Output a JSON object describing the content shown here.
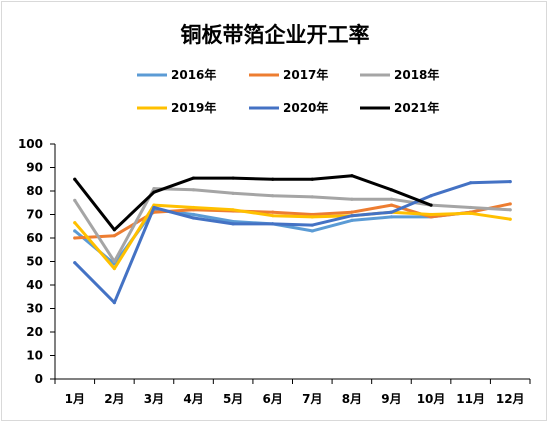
{
  "chart_data": {
    "type": "line",
    "title": "铜板带箔企业开工率",
    "xlabel": "",
    "ylabel": "",
    "categories": [
      "1月",
      "2月",
      "3月",
      "4月",
      "5月",
      "6月",
      "7月",
      "8月",
      "9月",
      "10月",
      "11月",
      "12月"
    ],
    "ylim": [
      0,
      100
    ],
    "yticks": [
      0,
      10,
      20,
      30,
      40,
      50,
      60,
      70,
      80,
      90,
      100
    ],
    "grid": false,
    "legend_position": "top",
    "series": [
      {
        "name": "2016年",
        "color": "#5b9bd5",
        "values": [
          63,
          49,
          72,
          70,
          67,
          66,
          63,
          67.5,
          69,
          69,
          71,
          null
        ]
      },
      {
        "name": "2017年",
        "color": "#ed7d31",
        "values": [
          60,
          61,
          71,
          72,
          71.5,
          71,
          70,
          71,
          74,
          69,
          71,
          74.5
        ]
      },
      {
        "name": "2018年",
        "color": "#a5a5a5",
        "values": [
          76,
          50,
          81,
          80.5,
          79,
          78,
          77.5,
          76.5,
          76.5,
          74,
          73,
          72
        ]
      },
      {
        "name": "2019年",
        "color": "#ffc000",
        "values": [
          66.5,
          47,
          74,
          73,
          72,
          69.5,
          69,
          69.5,
          71,
          70,
          70.5,
          68
        ]
      },
      {
        "name": "2020年",
        "color": "#4472c4",
        "values": [
          49.5,
          32.5,
          73,
          68.5,
          66,
          66,
          65.5,
          69.5,
          71,
          78,
          83.5,
          84
        ]
      },
      {
        "name": "2021年",
        "color": "#000000",
        "values": [
          85,
          63.5,
          79.5,
          85.5,
          85.5,
          85,
          85,
          86.5,
          80.5,
          74,
          null,
          null
        ]
      }
    ]
  }
}
